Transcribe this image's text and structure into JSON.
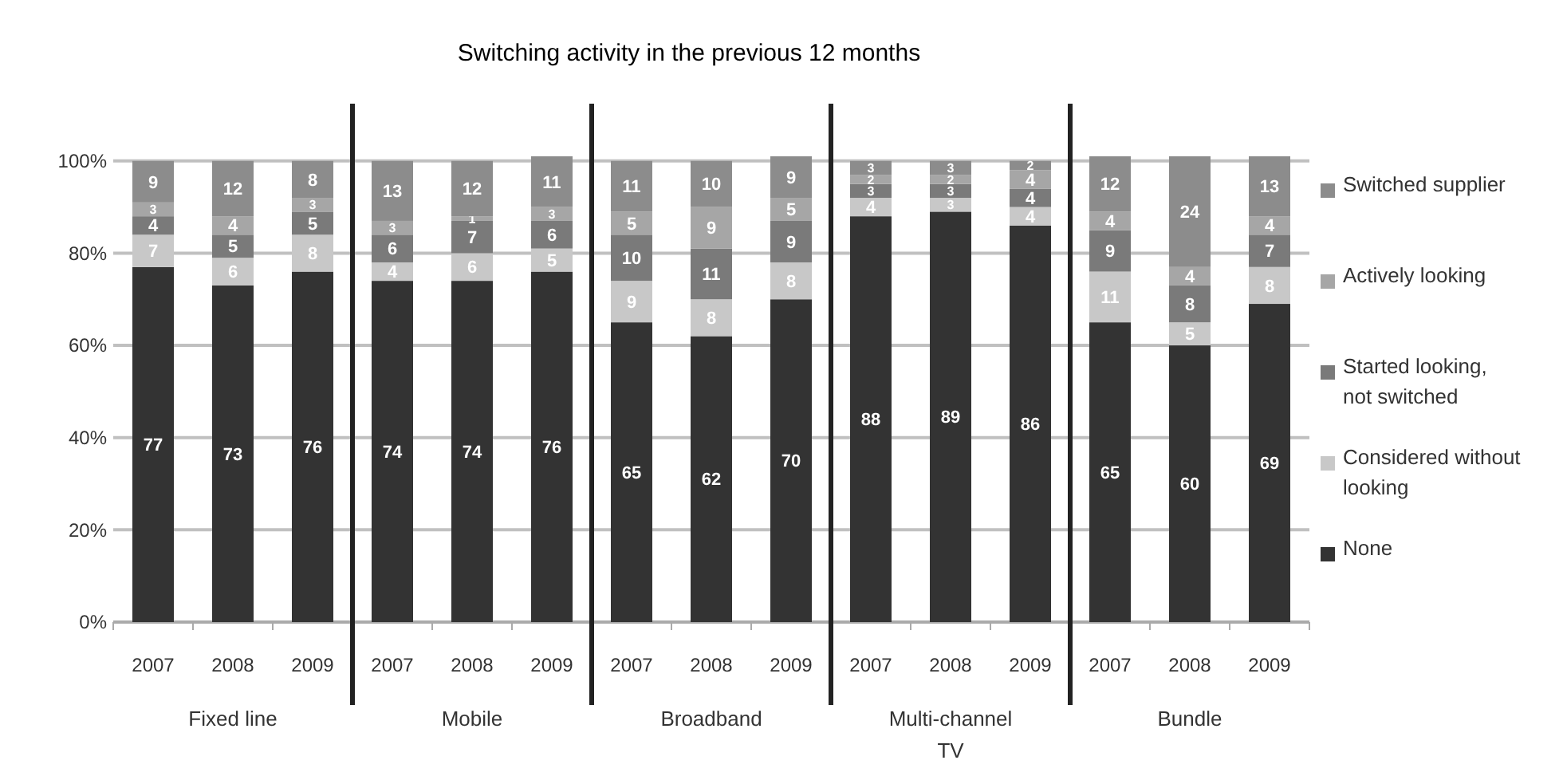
{
  "chart_data": {
    "type": "bar",
    "title": "Switching activity in the previous 12 months",
    "stacked": true,
    "data_labels": true,
    "grid": "y",
    "legend": "right",
    "categories": [
      "2007",
      "2008",
      "2009",
      "2007",
      "2008",
      "2009",
      "2007",
      "2008",
      "2009",
      "2007",
      "2008",
      "2009",
      "2007",
      "2008",
      "2009"
    ],
    "annotations": [
      "Fixed line",
      "Mobile",
      "Broadband",
      "Multi-channel TV",
      "Bundle"
    ],
    "ylim": [
      0,
      101
    ],
    "yticks": [
      {
        "value": 0,
        "label": "0%"
      },
      {
        "value": 20,
        "label": "20%"
      },
      {
        "value": 40,
        "label": "40%"
      },
      {
        "value": 60,
        "label": "60%"
      },
      {
        "value": 80,
        "label": "80%"
      },
      {
        "value": 100,
        "label": "100%"
      }
    ],
    "series": [
      {
        "name": "None",
        "color": "#333333",
        "values": [
          77,
          73,
          76,
          74,
          74,
          76,
          65,
          62,
          70,
          88,
          89,
          86,
          65,
          60,
          69
        ]
      },
      {
        "name": "Considered without looking",
        "color": "#c8c8c8",
        "values": [
          7,
          6,
          8,
          4,
          6,
          5,
          9,
          8,
          8,
          4,
          3,
          4,
          11,
          5,
          8
        ]
      },
      {
        "name": "Started looking, not switched",
        "color": "#7a7a7a",
        "values": [
          4,
          5,
          5,
          6,
          7,
          6,
          10,
          11,
          9,
          3,
          3,
          4,
          9,
          8,
          7
        ]
      },
      {
        "name": "Actively looking",
        "color": "#a6a6a6",
        "values": [
          3,
          4,
          3,
          3,
          1,
          3,
          5,
          9,
          5,
          2,
          2,
          4,
          4,
          4,
          4
        ]
      },
      {
        "name": "Switched supplier",
        "color": "#8c8c8c",
        "values": [
          9,
          12,
          8,
          13,
          12,
          11,
          11,
          10,
          9,
          3,
          3,
          2,
          12,
          24,
          13
        ]
      }
    ]
  }
}
